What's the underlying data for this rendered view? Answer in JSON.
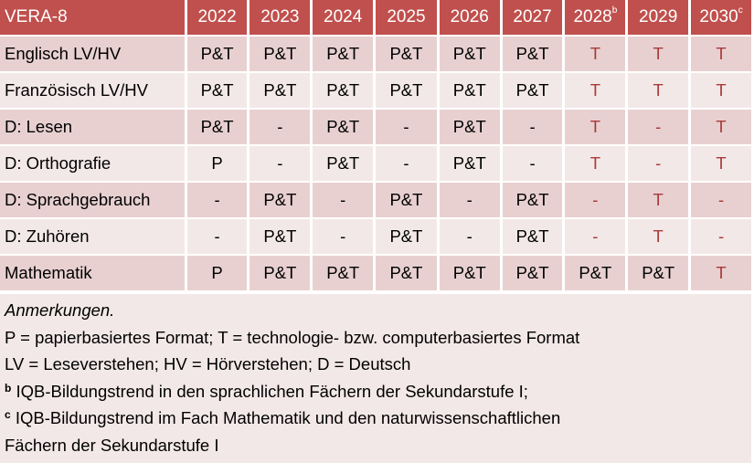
{
  "table": {
    "header": [
      "VERA-8",
      "2022",
      "2023",
      "2024",
      "2025",
      "2026",
      "2027",
      "2028",
      "2029",
      "2030"
    ],
    "header_sup": [
      "",
      "",
      "",
      "",
      "",
      "",
      "",
      "b",
      "",
      "c"
    ],
    "rows": [
      {
        "subject": "Englisch LV/HV",
        "values": [
          "P&T",
          "P&T",
          "P&T",
          "P&T",
          "P&T",
          "P&T",
          "T",
          "T",
          "T"
        ]
      },
      {
        "subject": "Französisch LV/HV",
        "values": [
          "P&T",
          "P&T",
          "P&T",
          "P&T",
          "P&T",
          "P&T",
          "T",
          "T",
          "T"
        ]
      },
      {
        "subject": "D: Lesen",
        "values": [
          "P&T",
          "-",
          "P&T",
          "-",
          "P&T",
          "-",
          "T",
          "-",
          "T"
        ]
      },
      {
        "subject": "D: Orthografie",
        "values": [
          "P",
          "-",
          "P&T",
          "-",
          "P&T",
          "-",
          "T",
          "-",
          "T"
        ]
      },
      {
        "subject": "D: Sprachgebrauch",
        "values": [
          "-",
          "P&T",
          "-",
          "P&T",
          "-",
          "P&T",
          "-",
          "T",
          "-"
        ]
      },
      {
        "subject": "D: Zuhören",
        "values": [
          "-",
          "P&T",
          "-",
          "P&T",
          "-",
          "P&T",
          "-",
          "T",
          "-"
        ]
      },
      {
        "subject": "Mathematik",
        "values": [
          "P",
          "P&T",
          "P&T",
          "P&T",
          "P&T",
          "P&T",
          "P&T",
          "P&T",
          "T"
        ]
      }
    ]
  },
  "notes": {
    "title": "Anmerkungen.",
    "line1": "P = papierbasiertes Format; T = technologie- bzw. computerbasiertes Format",
    "line2": "LV = Leseverstehen; HV = Hörverstehen; D = Deutsch",
    "footnote_b_mark": "b",
    "footnote_b": " IQB-Bildungstrend in den sprachlichen Fächern der Sekundarstufe I;",
    "footnote_c_mark": "c",
    "footnote_c": " IQB-Bildungstrend im Fach Mathematik und den naturwissenschaftlichen",
    "footnote_c_cont": "Fächern der Sekundarstufe I"
  },
  "colors": {
    "header": "#C0504D",
    "row_dark": "#E8D0D1",
    "row_light": "#F3E8E8",
    "future_text": "#A83A38"
  }
}
